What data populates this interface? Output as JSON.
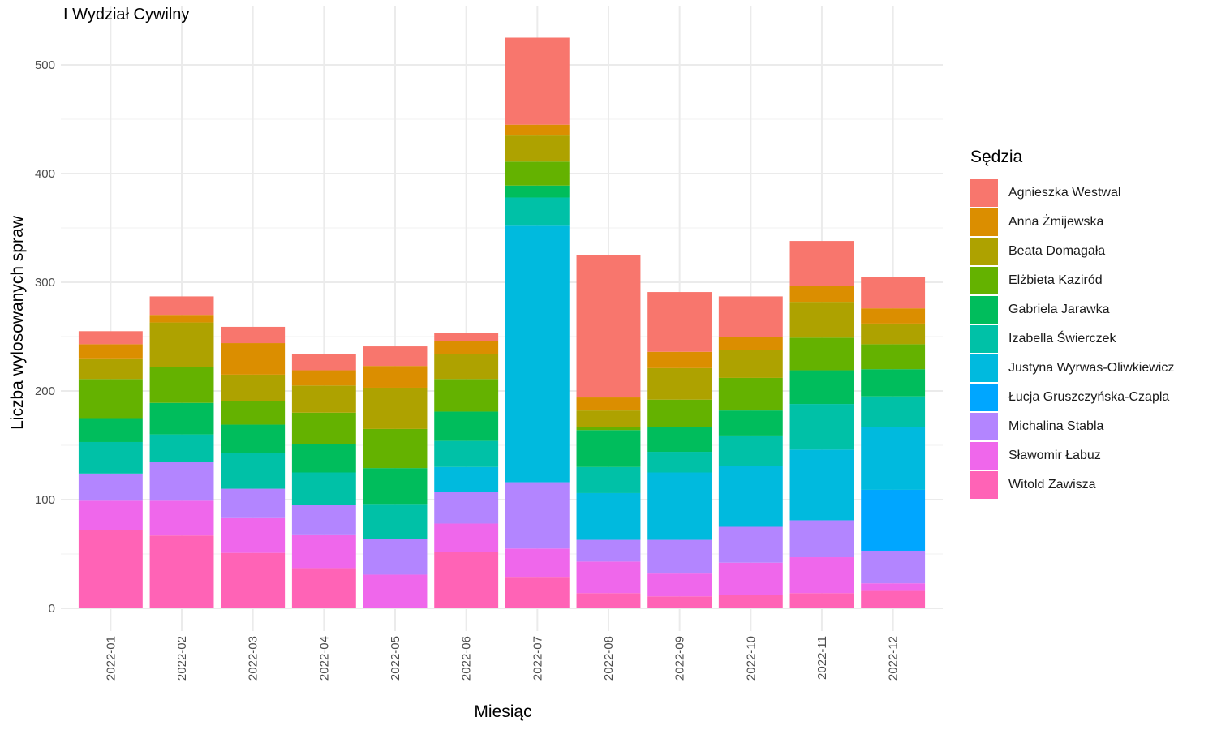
{
  "chart_data": {
    "type": "bar",
    "stacked": true,
    "title": "I Wydział Cywilny",
    "xlabel": "Miesiąc",
    "ylabel": "Liczba wylosowanych spraw",
    "ylim": [
      -20,
      535
    ],
    "yticks": [
      0,
      100,
      200,
      300,
      400,
      500
    ],
    "grid": true,
    "legend_position": "right",
    "legend_title": "Sędzia",
    "categories": [
      "2022-01",
      "2022-02",
      "2022-03",
      "2022-04",
      "2022-05",
      "2022-06",
      "2022-07",
      "2022-08",
      "2022-09",
      "2022-10",
      "2022-11",
      "2022-12"
    ],
    "series": [
      {
        "name": "Agnieszka Westwal",
        "color": "#F8766D",
        "values": [
          12,
          17,
          15,
          15,
          18,
          7,
          80,
          131,
          55,
          37,
          41,
          29
        ]
      },
      {
        "name": "Anna Żmijewska",
        "color": "#DB8E00",
        "values": [
          13,
          7,
          29,
          14,
          20,
          12,
          10,
          12,
          15,
          12,
          15,
          14
        ]
      },
      {
        "name": "Beata Domagała",
        "color": "#AEA200",
        "values": [
          19,
          41,
          24,
          25,
          38,
          23,
          24,
          15,
          29,
          26,
          33,
          19
        ]
      },
      {
        "name": "Elżbieta Kaziród",
        "color": "#64B200",
        "values": [
          36,
          33,
          22,
          29,
          36,
          30,
          22,
          3,
          25,
          30,
          30,
          23
        ]
      },
      {
        "name": "Gabriela Jarawka",
        "color": "#00BD5C",
        "values": [
          22,
          29,
          26,
          26,
          33,
          27,
          11,
          34,
          23,
          23,
          31,
          25
        ]
      },
      {
        "name": "Izabella Świerczek",
        "color": "#00C1A7",
        "values": [
          29,
          25,
          33,
          30,
          32,
          24,
          26,
          24,
          19,
          28,
          42,
          28
        ]
      },
      {
        "name": "Justyna Wyrwas-Oliwkiewicz",
        "color": "#00BADE",
        "values": [
          0,
          0,
          0,
          0,
          0,
          23,
          236,
          43,
          62,
          56,
          65,
          58
        ]
      },
      {
        "name": "Łucja Gruszczyńska-Czapla",
        "color": "#00A6FF",
        "values": [
          0,
          0,
          0,
          0,
          0,
          0,
          0,
          0,
          0,
          0,
          0,
          56
        ]
      },
      {
        "name": "Michalina Stabla",
        "color": "#B385FF",
        "values": [
          25,
          36,
          27,
          27,
          33,
          29,
          61,
          20,
          31,
          33,
          34,
          30
        ]
      },
      {
        "name": "Sławomir Łabuz",
        "color": "#EF67EB",
        "values": [
          27,
          32,
          32,
          31,
          31,
          26,
          26,
          29,
          21,
          30,
          33,
          7
        ]
      },
      {
        "name": "Witold Zawisza",
        "color": "#FF63B6",
        "values": [
          72,
          67,
          51,
          37,
          0,
          52,
          29,
          14,
          11,
          12,
          14,
          16
        ]
      }
    ]
  }
}
